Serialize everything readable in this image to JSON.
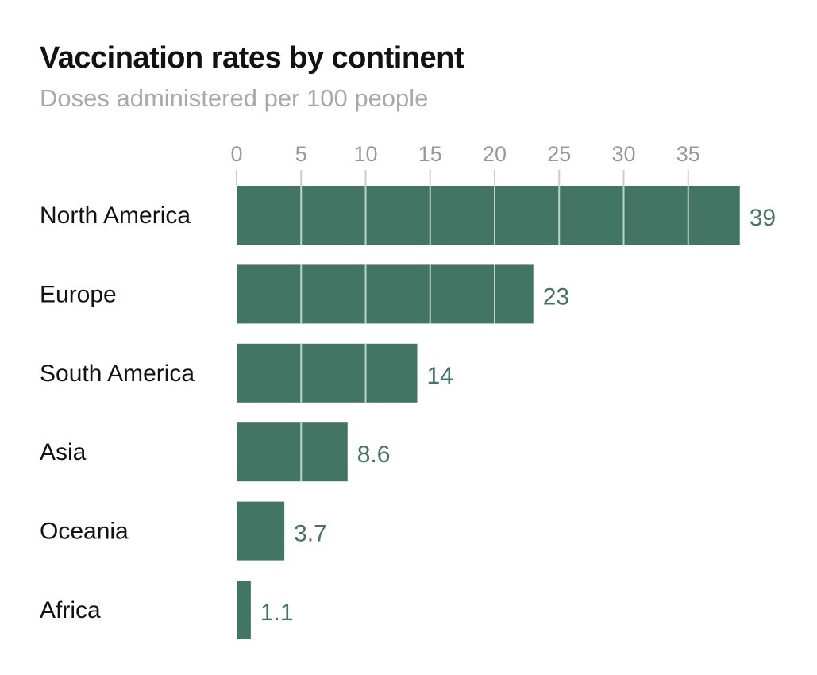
{
  "colors": {
    "bar": "#437565",
    "value_label": "#437565",
    "gridline": "#bcd3cb",
    "axis_line": "#cccccc"
  },
  "chart_data": {
    "type": "bar",
    "orientation": "horizontal",
    "title": "Vaccination rates by continent",
    "subtitle": "Doses administered per 100 people",
    "categories": [
      "North America",
      "Europe",
      "South America",
      "Asia",
      "Oceania",
      "Africa"
    ],
    "values": [
      39,
      23,
      14,
      8.6,
      3.7,
      1.1
    ],
    "value_labels": [
      "39",
      "23",
      "14",
      "8.6",
      "3.7",
      "1.1"
    ],
    "x_ticks": [
      0,
      5,
      10,
      15,
      20,
      25,
      30,
      35
    ],
    "xlim": [
      0,
      39
    ],
    "xaxis_position": "top",
    "grid": true,
    "legend": "none"
  }
}
